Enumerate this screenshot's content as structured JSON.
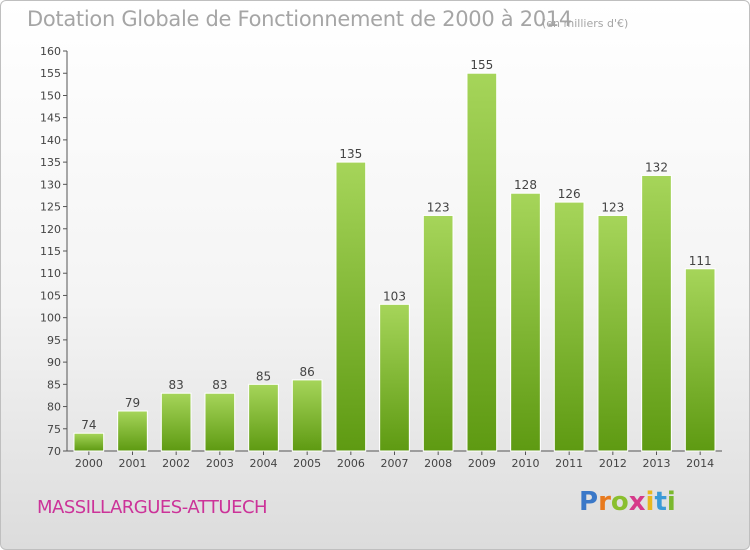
{
  "header": {
    "title": "Dotation Globale de Fonctionnement de 2000 à 2014",
    "subtitle": "(en milliers d'€)"
  },
  "footer": {
    "commune": "MASSILLARGUES-ATTUECH",
    "logo_text": "Proxiti"
  },
  "colors": {
    "bar_light": "#a6d55a",
    "bar_dark": "#5e9a12",
    "commune": "#cc3399",
    "title": "#a5a5a5"
  },
  "chart_data": {
    "type": "bar",
    "categories": [
      "2000",
      "2001",
      "2002",
      "2003",
      "2004",
      "2005",
      "2006",
      "2007",
      "2008",
      "2009",
      "2010",
      "2011",
      "2012",
      "2013",
      "2014"
    ],
    "values": [
      74,
      79,
      83,
      83,
      85,
      86,
      135,
      103,
      123,
      155,
      128,
      126,
      123,
      132,
      111
    ],
    "ylim": [
      70,
      160
    ],
    "ytick_step": 5,
    "grid": false,
    "legend": "none"
  }
}
